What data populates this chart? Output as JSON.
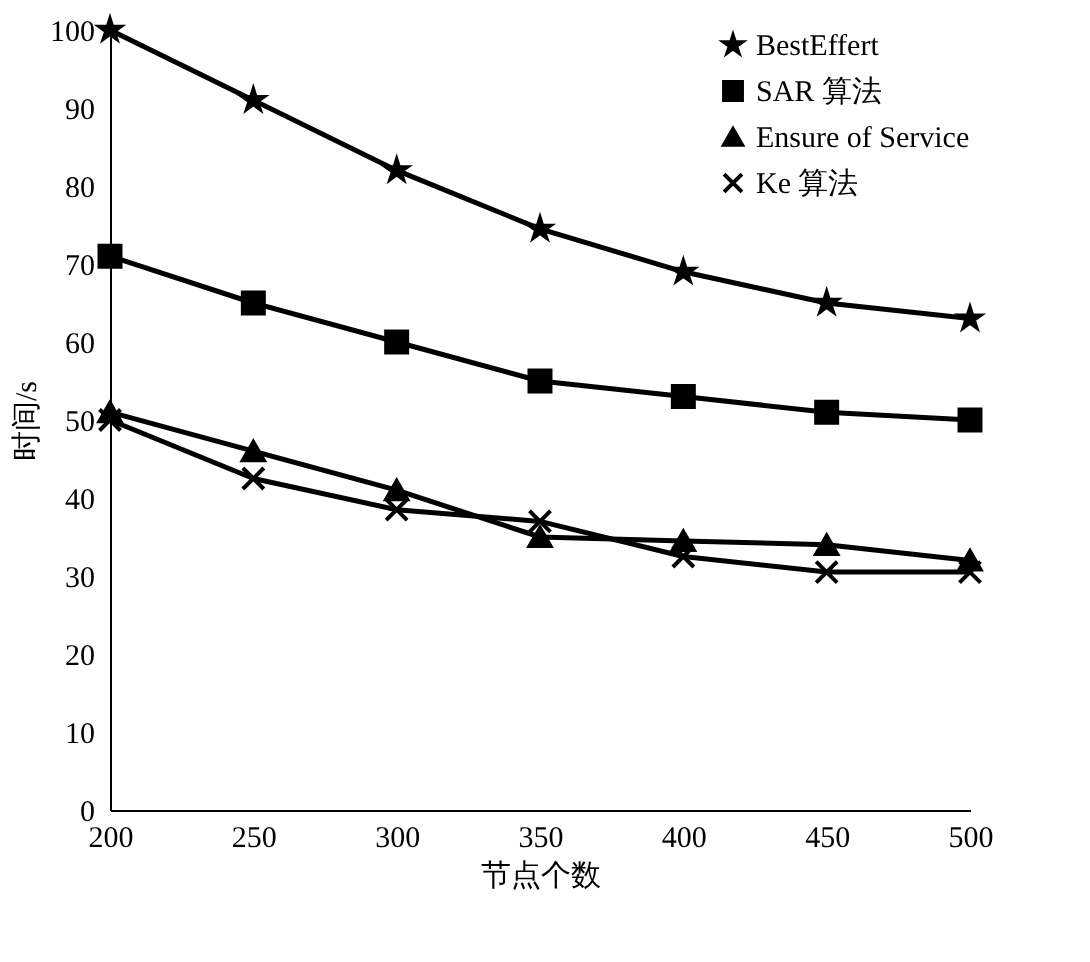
{
  "chart_data": {
    "type": "line",
    "xlabel": "节点个数",
    "ylabel": "时间/s",
    "x": [
      200,
      250,
      300,
      350,
      400,
      450,
      500
    ],
    "xlim": [
      200,
      500
    ],
    "xticks": [
      200,
      250,
      300,
      350,
      400,
      450,
      500
    ],
    "ylim": [
      0,
      100
    ],
    "yticks": [
      0,
      10,
      20,
      30,
      40,
      50,
      60,
      70,
      80,
      90,
      100
    ],
    "grid": false,
    "legend": "top right",
    "line_style": "solid",
    "series": [
      {
        "name": "BestEffert",
        "color": "#000000",
        "marker": "star",
        "values": [
          100,
          91,
          82,
          74.5,
          69,
          65,
          63
        ]
      },
      {
        "name": "SAR 算法",
        "color": "#000000",
        "marker": "square",
        "values": [
          71,
          65,
          60,
          55,
          53,
          51,
          50
        ]
      },
      {
        "name": "Ensure of Service",
        "color": "#000000",
        "marker": "triangle",
        "values": [
          51,
          46,
          41,
          35,
          34.5,
          34,
          32
        ]
      },
      {
        "name": "Ke 算法",
        "color": "#000000",
        "marker": "cross",
        "values": [
          50,
          42.5,
          38.5,
          37,
          32.5,
          30.5,
          30.5
        ]
      }
    ]
  }
}
